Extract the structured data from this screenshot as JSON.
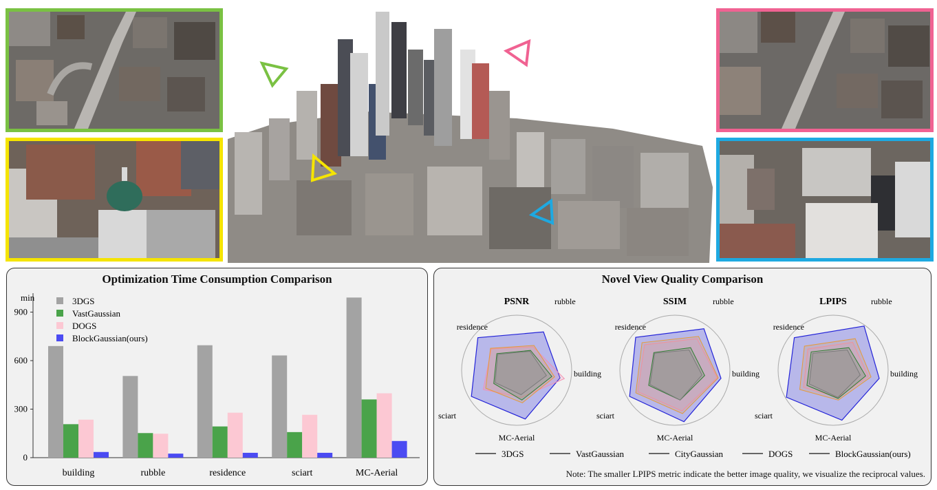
{
  "colors": {
    "green_frame": "#7ac143",
    "yellow_frame": "#f5e400",
    "pink_frame": "#f06292",
    "blue_frame": "#1ea9e1"
  },
  "photos": {
    "top_left": "green-framed city view with highway",
    "bottom_left": "yellow-framed dome building view",
    "center": "3D city reconstruction with camera frustums",
    "top_right": "pink-framed city view with highway",
    "bottom_right": "blue-framed rooftop view"
  },
  "chart_data": [
    {
      "type": "bar",
      "title": "Optimization Time Consumption Comparison",
      "ylabel": "min",
      "ylim": [
        0,
        1000
      ],
      "yticks": [
        0,
        300,
        600,
        900
      ],
      "categories": [
        "building",
        "rubble",
        "residence",
        "sciart",
        "MC-Aerial"
      ],
      "legend_position": "top-left",
      "series": [
        {
          "name": "3DGS",
          "color": "#a3a3a3",
          "values": [
            690,
            505,
            695,
            632,
            990
          ]
        },
        {
          "name": "VastGaussian",
          "color": "#4aa34a",
          "values": [
            207,
            152,
            193,
            158,
            360
          ]
        },
        {
          "name": "DOGS",
          "color": "#fcc8d3",
          "values": [
            235,
            148,
            278,
            265,
            398
          ]
        },
        {
          "name": "BlockGaussian(ours)",
          "color": "#4b4bf2",
          "values": [
            35,
            25,
            30,
            30,
            103
          ]
        }
      ]
    },
    {
      "type": "radar",
      "title": "Novel View Quality Comparison",
      "axes": [
        "rubble",
        "building",
        "MC-Aerial",
        "sciart",
        "residence"
      ],
      "legend": [
        "3DGS",
        "VastGaussian",
        "CityGaussian",
        "DOGS",
        "BlockGaussian(ours)"
      ],
      "note": "Note: The smaller LPIPS metric indicate the better image quality, we visualize the reciprocal values.",
      "charts": [
        {
          "title": "PSNR",
          "series": [
            {
              "name": "3DGS",
              "color": "#7a7a7a",
              "values": [
                0.42,
                0.55,
                0.45,
                0.45,
                0.45
              ]
            },
            {
              "name": "VastGaussian",
              "color": "#2e7d32",
              "values": [
                0.44,
                0.65,
                0.55,
                0.48,
                0.47
              ]
            },
            {
              "name": "CityGaussian",
              "color": "#e69a3a",
              "values": [
                0.55,
                0.7,
                0.6,
                0.65,
                0.62
              ]
            },
            {
              "name": "DOGS",
              "color": "#f48fb1",
              "values": [
                0.52,
                0.88,
                0.5,
                0.7,
                0.6
              ]
            },
            {
              "name": "BlockGaussian(ours)",
              "color": "#2323d8",
              "values": [
                0.85,
                0.8,
                0.9,
                0.95,
                0.92
              ]
            }
          ]
        },
        {
          "title": "SSIM",
          "series": [
            {
              "name": "3DGS",
              "color": "#7a7a7a",
              "values": [
                0.45,
                0.5,
                0.55,
                0.52,
                0.48
              ]
            },
            {
              "name": "VastGaussian",
              "color": "#2e7d32",
              "values": [
                0.5,
                0.55,
                0.55,
                0.55,
                0.5
              ]
            },
            {
              "name": "CityGaussian",
              "color": "#e69a3a",
              "values": [
                0.75,
                0.8,
                0.8,
                0.82,
                0.78
              ]
            },
            {
              "name": "DOGS",
              "color": "#f48fb1",
              "values": [
                0.7,
                0.78,
                0.75,
                0.78,
                0.72
              ]
            },
            {
              "name": "BlockGaussian(ours)",
              "color": "#2323d8",
              "values": [
                0.92,
                0.85,
                0.95,
                0.95,
                0.93
              ]
            }
          ]
        },
        {
          "title": "LPIPS",
          "series": [
            {
              "name": "3DGS",
              "color": "#7a7a7a",
              "values": [
                0.45,
                0.5,
                0.5,
                0.5,
                0.48
              ]
            },
            {
              "name": "VastGaussian",
              "color": "#2e7d32",
              "values": [
                0.5,
                0.6,
                0.52,
                0.55,
                0.52
              ]
            },
            {
              "name": "CityGaussian",
              "color": "#e69a3a",
              "values": [
                0.7,
                0.7,
                0.55,
                0.7,
                0.68
              ]
            },
            {
              "name": "DOGS",
              "color": "#f48fb1",
              "values": [
                0.62,
                0.65,
                0.5,
                0.62,
                0.6
              ]
            },
            {
              "name": "BlockGaussian(ours)",
              "color": "#2323d8",
              "values": [
                0.98,
                0.85,
                0.92,
                0.98,
                0.92
              ]
            }
          ]
        }
      ]
    }
  ]
}
